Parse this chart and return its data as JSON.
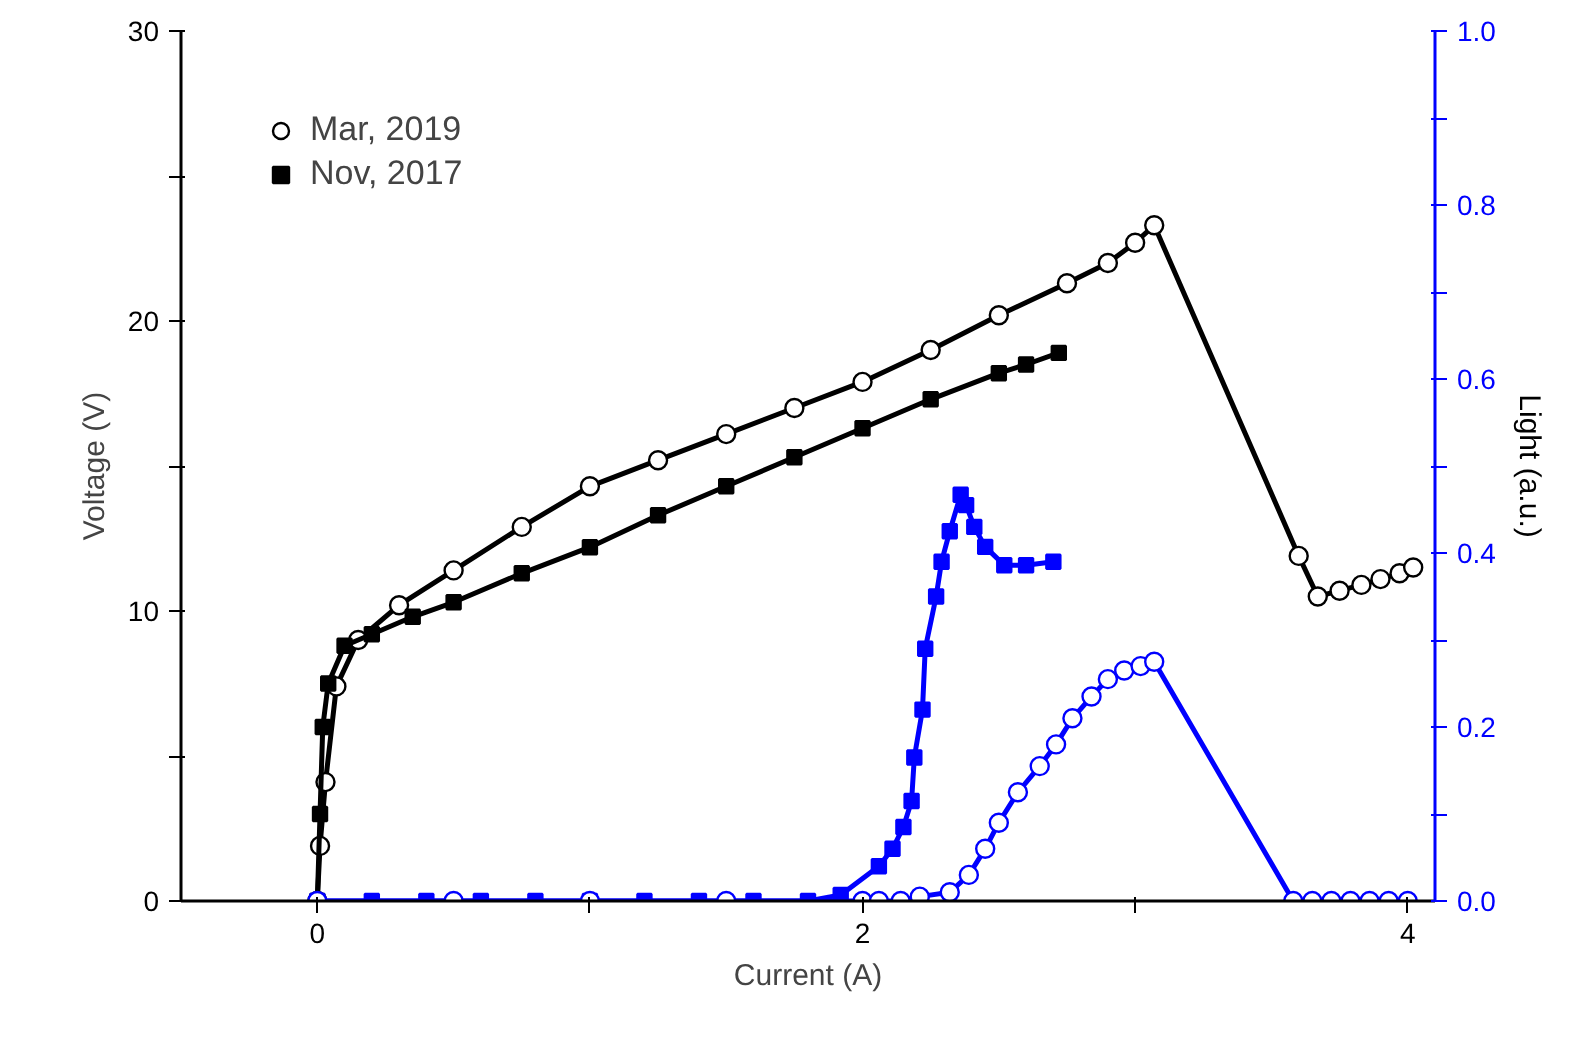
{
  "chart_data": {
    "type": "line",
    "xlabel": "Current (A)",
    "ylabel": "Voltage (V)",
    "y2label": "Light (a.u.)",
    "xlim": [
      -0.5,
      4.1
    ],
    "xticks": [
      0,
      {
        "value": 1,
        "label": null
      },
      2,
      {
        "value": 3,
        "label": null
      },
      4
    ],
    "ylim": [
      0,
      30
    ],
    "yticks": [
      0,
      {
        "value": 5,
        "label": null
      },
      10,
      {
        "value": 15,
        "label": null
      },
      20,
      {
        "value": 25,
        "label": null
      },
      30
    ],
    "y2lim": [
      0,
      1
    ],
    "y2ticks": [
      {
        "value": 0,
        "label": "0.0"
      },
      {
        "value": 0.1,
        "label": null
      },
      {
        "value": 0.2,
        "label": "0.2"
      },
      {
        "value": 0.3,
        "label": null
      },
      {
        "value": 0.4,
        "label": "0.4"
      },
      {
        "value": 0.5,
        "label": null
      },
      {
        "value": 0.6,
        "label": "0.6"
      },
      {
        "value": 0.7,
        "label": null
      },
      {
        "value": 0.8,
        "label": "0.8"
      },
      {
        "value": 0.9,
        "label": null
      },
      {
        "value": 1.0,
        "label": "1.0"
      }
    ],
    "grid": false,
    "legend": "top left",
    "line_style": "solid",
    "series": [
      {
        "name": "Mar, 2019",
        "color": "#000000",
        "marker": "circle",
        "x": [
          0,
          0.01,
          0.03,
          0.07,
          0.15,
          0.3,
          0.5,
          0.75,
          1.0,
          1.25,
          1.5,
          1.75,
          2.0,
          2.25,
          2.5,
          2.75,
          2.9,
          3.0,
          3.07,
          3.6,
          3.67,
          3.75,
          3.83,
          3.9,
          3.97,
          4.02
        ],
        "values": [
          0,
          1.9,
          4.1,
          7.4,
          9.0,
          10.2,
          11.4,
          12.9,
          14.3,
          15.2,
          16.1,
          17.0,
          17.9,
          19.0,
          20.2,
          21.3,
          22.0,
          22.7,
          23.3,
          11.9,
          10.5,
          10.7,
          10.9,
          11.1,
          11.3,
          11.5
        ]
      },
      {
        "name": "Nov, 2017",
        "color": "#000000",
        "marker": "square",
        "x": [
          0,
          0.01,
          0.02,
          0.04,
          0.1,
          0.2,
          0.35,
          0.5,
          0.75,
          1.0,
          1.25,
          1.5,
          1.75,
          2.0,
          2.25,
          2.5,
          2.6,
          2.72
        ],
        "values": [
          0,
          3,
          6,
          7.5,
          8.8,
          9.2,
          9.8,
          10.3,
          11.3,
          12.2,
          13.3,
          14.3,
          15.3,
          16.3,
          17.3,
          18.2,
          18.5,
          18.9
        ]
      },
      {
        "color": "#0000ff",
        "marker": "square",
        "axis": "y2",
        "x": [
          0,
          0.2,
          0.4,
          0.6,
          0.8,
          1.0,
          1.2,
          1.4,
          1.6,
          1.8,
          1.92,
          2.06,
          2.11,
          2.15,
          2.18,
          2.19,
          2.22,
          2.23,
          2.27,
          2.29,
          2.32,
          2.36,
          2.38,
          2.41,
          2.45,
          2.52,
          2.6,
          2.7
        ],
        "values": [
          0,
          0,
          0,
          0,
          0,
          0,
          0,
          0,
          0,
          0,
          0.007,
          0.04,
          0.06,
          0.085,
          0.115,
          0.165,
          0.22,
          0.29,
          0.35,
          0.39,
          0.425,
          0.467,
          0.455,
          0.43,
          0.407,
          0.386,
          0.386,
          0.39
        ]
      },
      {
        "color": "#0000ff",
        "marker": "circle",
        "axis": "y2",
        "x": [
          0,
          0.5,
          1.0,
          1.5,
          2.0,
          2.06,
          2.14,
          2.21,
          2.32,
          2.39,
          2.45,
          2.5,
          2.57,
          2.65,
          2.71,
          2.77,
          2.84,
          2.9,
          2.96,
          3.02,
          3.07,
          3.58,
          3.65,
          3.72,
          3.79,
          3.86,
          3.93,
          4.0
        ],
        "values": [
          0,
          0,
          0,
          0,
          0,
          0,
          0,
          0.005,
          0.01,
          0.03,
          0.06,
          0.09,
          0.125,
          0.155,
          0.18,
          0.21,
          0.235,
          0.255,
          0.265,
          0.27,
          0.275,
          0,
          0,
          0,
          0,
          0,
          0,
          0
        ]
      }
    ]
  }
}
